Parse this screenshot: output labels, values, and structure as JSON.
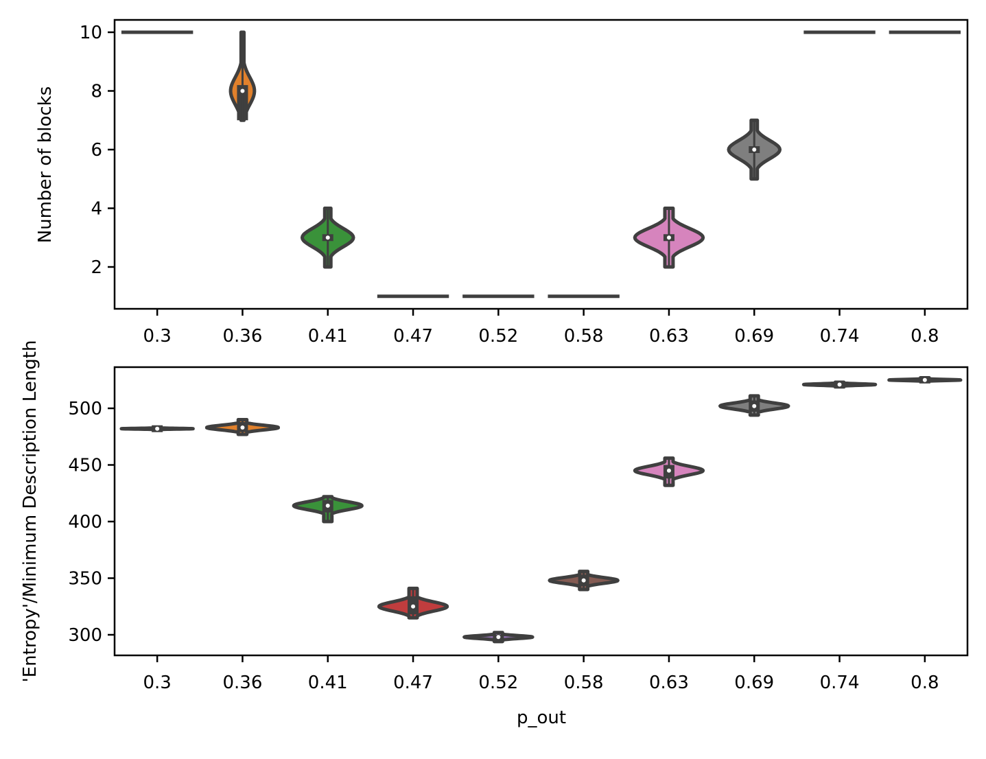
{
  "chart_data": [
    {
      "type": "violin",
      "title": "",
      "xlabel": "",
      "ylabel": "Number of blocks",
      "categories": [
        "0.3",
        "0.36",
        "0.41",
        "0.47",
        "0.52",
        "0.58",
        "0.63",
        "0.69",
        "0.74",
        "0.8"
      ],
      "yticks": [
        2,
        4,
        6,
        8,
        10
      ],
      "ylim": [
        0.55,
        10.4
      ],
      "grid": false,
      "series": [
        {
          "category": "0.3",
          "color": "#3a75af",
          "min": 10,
          "max": 10,
          "median": 10,
          "q1": 10,
          "q3": 10,
          "half_width": 0.42,
          "degenerate": true
        },
        {
          "category": "0.36",
          "color": "#e1812c",
          "min": 7,
          "max": 10,
          "median": 8,
          "q1": 7,
          "q3": 8.2,
          "half_width": 0.14
        },
        {
          "category": "0.41",
          "color": "#3a923a",
          "min": 2,
          "max": 4,
          "median": 3,
          "q1": 3,
          "q3": 3,
          "half_width": 0.3
        },
        {
          "category": "0.47",
          "color": "#c03d3e",
          "min": 1,
          "max": 1,
          "median": 1,
          "q1": 1,
          "q3": 1,
          "half_width": 0.42,
          "degenerate": true
        },
        {
          "category": "0.52",
          "color": "#9372b2",
          "min": 1,
          "max": 1,
          "median": 1,
          "q1": 1,
          "q3": 1,
          "half_width": 0.42,
          "degenerate": true
        },
        {
          "category": "0.58",
          "color": "#845b53",
          "min": 1,
          "max": 1,
          "median": 1,
          "q1": 1,
          "q3": 1,
          "half_width": 0.42,
          "degenerate": true
        },
        {
          "category": "0.63",
          "color": "#d684bd",
          "min": 2,
          "max": 4,
          "median": 3,
          "q1": 3,
          "q3": 3,
          "half_width": 0.4
        },
        {
          "category": "0.69",
          "color": "#7f7f7f",
          "min": 5,
          "max": 7,
          "median": 6,
          "q1": 6,
          "q3": 6,
          "half_width": 0.3
        },
        {
          "category": "0.74",
          "color": "#a9aa35",
          "min": 10,
          "max": 10,
          "median": 10,
          "q1": 10,
          "q3": 10,
          "half_width": 0.42,
          "degenerate": true
        },
        {
          "category": "0.8",
          "color": "#2ebece",
          "min": 10,
          "max": 10,
          "median": 10,
          "q1": 10,
          "q3": 10,
          "half_width": 0.42,
          "degenerate": true
        }
      ]
    },
    {
      "type": "violin",
      "title": "",
      "xlabel": "p_out",
      "ylabel": "'Entropy'/Minimum Description Length",
      "categories": [
        "0.3",
        "0.36",
        "0.41",
        "0.47",
        "0.52",
        "0.58",
        "0.63",
        "0.69",
        "0.74",
        "0.8"
      ],
      "yticks": [
        300,
        350,
        400,
        450,
        500
      ],
      "ylim": [
        282,
        536
      ],
      "grid": false,
      "series": [
        {
          "category": "0.3",
          "color": "#3a75af",
          "min": 481,
          "max": 483,
          "median": 482,
          "q1": 481,
          "q3": 483,
          "half_width": 0.42
        },
        {
          "category": "0.36",
          "color": "#e1812c",
          "min": 477,
          "max": 490,
          "median": 483,
          "q1": 479,
          "q3": 488,
          "half_width": 0.42
        },
        {
          "category": "0.41",
          "color": "#3a923a",
          "min": 400,
          "max": 422,
          "median": 414,
          "q1": 408,
          "q3": 419,
          "half_width": 0.4
        },
        {
          "category": "0.47",
          "color": "#c03d3e",
          "min": 315,
          "max": 341,
          "median": 325,
          "q1": 318,
          "q3": 334,
          "half_width": 0.4
        },
        {
          "category": "0.52",
          "color": "#9372b2",
          "min": 294,
          "max": 302,
          "median": 298,
          "q1": 294,
          "q3": 300,
          "half_width": 0.4
        },
        {
          "category": "0.58",
          "color": "#845b53",
          "min": 340,
          "max": 356,
          "median": 348,
          "q1": 343,
          "q3": 353,
          "half_width": 0.4
        },
        {
          "category": "0.63",
          "color": "#d684bd",
          "min": 432,
          "max": 456,
          "median": 445,
          "q1": 438,
          "q3": 450,
          "half_width": 0.4
        },
        {
          "category": "0.69",
          "color": "#7f7f7f",
          "min": 494,
          "max": 511,
          "median": 502,
          "q1": 497,
          "q3": 507,
          "half_width": 0.4
        },
        {
          "category": "0.74",
          "color": "#a9aa35",
          "min": 519,
          "max": 523,
          "median": 521,
          "q1": 518,
          "q3": 523,
          "half_width": 0.42
        },
        {
          "category": "0.8",
          "color": "#2ebece",
          "min": 524,
          "max": 527,
          "median": 525,
          "q1": 522,
          "q3": 528,
          "half_width": 0.42
        }
      ]
    }
  ],
  "panels": {
    "top": {
      "ylabel": "Number of blocks"
    },
    "bottom": {
      "ylabel": "'Entropy'/Minimum Description Length",
      "xlabel": "p_out"
    }
  }
}
